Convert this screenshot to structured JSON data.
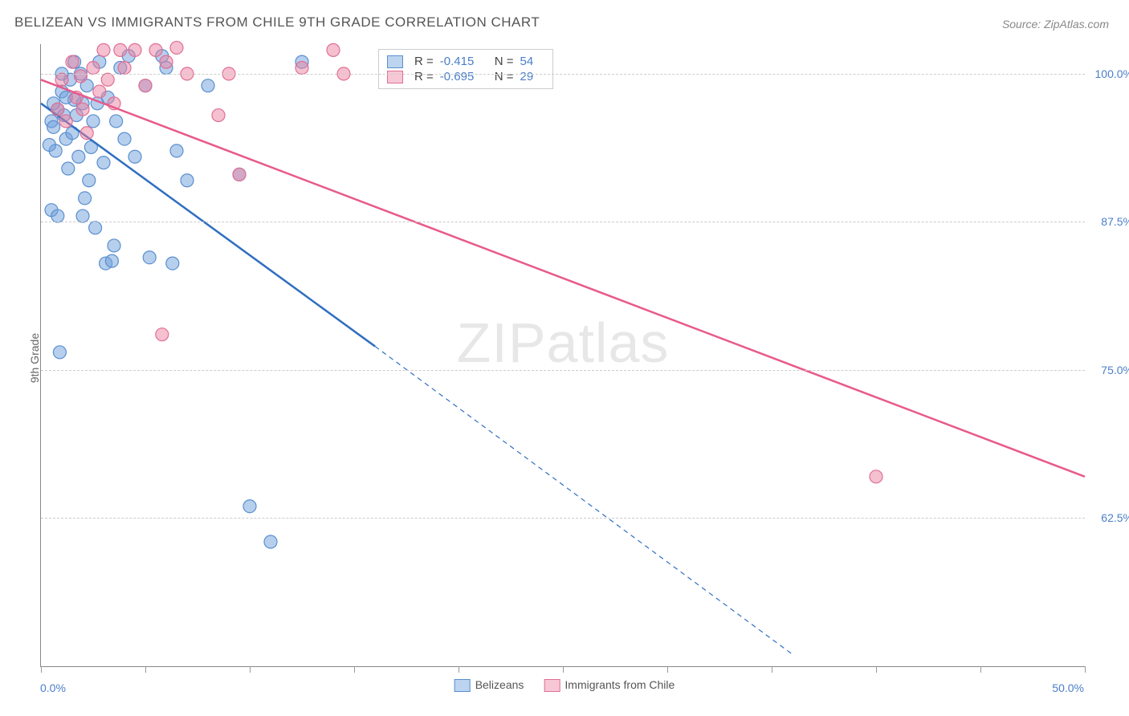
{
  "title": "BELIZEAN VS IMMIGRANTS FROM CHILE 9TH GRADE CORRELATION CHART",
  "source": "Source: ZipAtlas.com",
  "ylabel": "9th Grade",
  "watermark_zip": "ZIP",
  "watermark_atlas": "atlas",
  "chart": {
    "type": "scatter-with-regression",
    "background_color": "#ffffff",
    "grid_color": "#cccccc",
    "axis_color": "#888888",
    "label_color": "#4a7ec9",
    "xlim": [
      0,
      50
    ],
    "ylim": [
      50,
      102.5
    ],
    "ytick_labels": [
      "100.0%",
      "87.5%",
      "75.0%",
      "62.5%"
    ],
    "ytick_values": [
      100.0,
      87.5,
      75.0,
      62.5
    ],
    "xtick_values": [
      0,
      5,
      10,
      15,
      20,
      25,
      30,
      35,
      40,
      45,
      50
    ],
    "xaxis_labels": {
      "left": "0.0%",
      "right": "50.0%"
    },
    "marker_radius": 8,
    "marker_opacity": 0.55,
    "line_width": 2.5,
    "series": [
      {
        "id": "belizeans",
        "label": "Belizeans",
        "color_fill": "rgba(110,160,220,0.5)",
        "color_stroke": "#5a8fcf",
        "line_color": "#2f6fc0",
        "swatch_fill": "#bcd4ef",
        "swatch_border": "#5a8fcf",
        "R": "-0.415",
        "N": "54",
        "regression": {
          "x1": 0,
          "y1": 97.5,
          "x2_solid": 16,
          "y2_solid": 77,
          "x2_dash": 36,
          "y2_dash": 51
        },
        "points": [
          [
            0.5,
            96
          ],
          [
            0.6,
            95.5
          ],
          [
            0.8,
            97
          ],
          [
            1.0,
            98.5
          ],
          [
            1.2,
            94.5
          ],
          [
            1.4,
            99.5
          ],
          [
            1.5,
            95
          ],
          [
            1.6,
            101
          ],
          [
            1.8,
            93
          ],
          [
            2.0,
            97.5
          ],
          [
            2.1,
            89.5
          ],
          [
            2.2,
            99
          ],
          [
            2.3,
            91
          ],
          [
            2.5,
            96
          ],
          [
            2.6,
            87
          ],
          [
            2.8,
            101
          ],
          [
            3.0,
            92.5
          ],
          [
            3.1,
            84
          ],
          [
            3.2,
            98
          ],
          [
            3.4,
            84.2
          ],
          [
            3.5,
            85.5
          ],
          [
            3.8,
            100.5
          ],
          [
            4.0,
            94.5
          ],
          [
            4.2,
            101.5
          ],
          [
            4.5,
            93
          ],
          [
            5.0,
            99
          ],
          [
            5.2,
            84.5
          ],
          [
            5.8,
            101.5
          ],
          [
            6.0,
            100.5
          ],
          [
            6.3,
            84
          ],
          [
            6.5,
            93.5
          ],
          [
            7.0,
            91
          ],
          [
            8.0,
            99
          ],
          [
            9.5,
            91.5
          ],
          [
            10,
            63.5
          ],
          [
            11,
            60.5
          ],
          [
            12.5,
            101
          ],
          [
            0.9,
            76.5
          ],
          [
            0.5,
            88.5
          ],
          [
            1.0,
            100
          ],
          [
            1.3,
            92
          ],
          [
            1.7,
            96.5
          ],
          [
            2.0,
            88
          ],
          [
            0.7,
            93.5
          ],
          [
            1.1,
            96.5
          ],
          [
            1.6,
            97.8
          ],
          [
            2.4,
            93.8
          ],
          [
            0.4,
            94
          ],
          [
            0.8,
            88
          ],
          [
            1.9,
            100
          ],
          [
            3.6,
            96
          ],
          [
            0.6,
            97.5
          ],
          [
            1.2,
            98
          ],
          [
            2.7,
            97.5
          ]
        ]
      },
      {
        "id": "chile",
        "label": "Immigrants from Chile",
        "color_fill": "rgba(235,130,160,0.5)",
        "color_stroke": "#e06f95",
        "line_color": "#e85a8a",
        "swatch_fill": "#f7c7d6",
        "swatch_border": "#e06f95",
        "R": "-0.695",
        "N": "29",
        "regression": {
          "x1": 0,
          "y1": 99.5,
          "x2_solid": 50,
          "y2_solid": 66,
          "x2_dash": 50,
          "y2_dash": 66
        },
        "points": [
          [
            0.8,
            97
          ],
          [
            1.0,
            99.5
          ],
          [
            1.2,
            96
          ],
          [
            1.5,
            101
          ],
          [
            1.7,
            98
          ],
          [
            1.9,
            99.8
          ],
          [
            2.0,
            97
          ],
          [
            2.2,
            95
          ],
          [
            2.5,
            100.5
          ],
          [
            2.8,
            98.5
          ],
          [
            3.0,
            102
          ],
          [
            3.2,
            99.5
          ],
          [
            3.5,
            97.5
          ],
          [
            3.8,
            102
          ],
          [
            4.0,
            100.5
          ],
          [
            4.5,
            102
          ],
          [
            5.0,
            99
          ],
          [
            5.5,
            102
          ],
          [
            6.0,
            101
          ],
          [
            6.5,
            102.2
          ],
          [
            7.0,
            100
          ],
          [
            8.5,
            96.5
          ],
          [
            9.0,
            100
          ],
          [
            9.5,
            91.5
          ],
          [
            12.5,
            100.5
          ],
          [
            14,
            102
          ],
          [
            14.5,
            100
          ],
          [
            5.8,
            78
          ],
          [
            40,
            66
          ]
        ]
      }
    ]
  },
  "top_legend": {
    "r_prefix": "R =",
    "n_prefix": "N ="
  }
}
